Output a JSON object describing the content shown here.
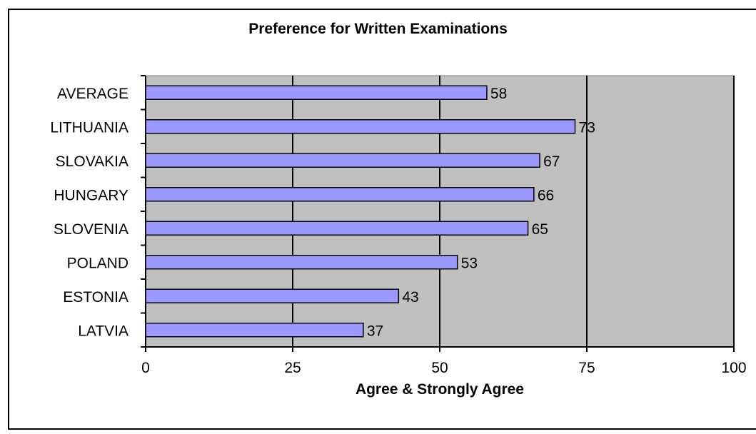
{
  "chart_data": {
    "type": "bar",
    "orientation": "horizontal",
    "title": "Preference for Written Examinations",
    "xlabel": "Agree & Strongly Agree",
    "categories": [
      "AVERAGE",
      "LITHUANIA",
      "SLOVAKIA",
      "HUNGARY",
      "SLOVENIA",
      "POLAND",
      "ESTONIA",
      "LATVIA"
    ],
    "values": [
      58,
      73,
      67,
      66,
      65,
      53,
      43,
      37
    ],
    "value_labels": [
      "58",
      "73",
      "67",
      "66",
      "65",
      "53",
      "43",
      "37"
    ],
    "xlim": [
      0,
      100
    ],
    "xticks": [
      "0",
      "25",
      "50",
      "75",
      "100"
    ],
    "grid": "vertical major gridlines",
    "legend": "none",
    "colors": {
      "bar_fill": "#9999ff",
      "bar_stroke": "#000000",
      "plot_background": "#c0c0c0",
      "gridline": "#000000"
    }
  }
}
